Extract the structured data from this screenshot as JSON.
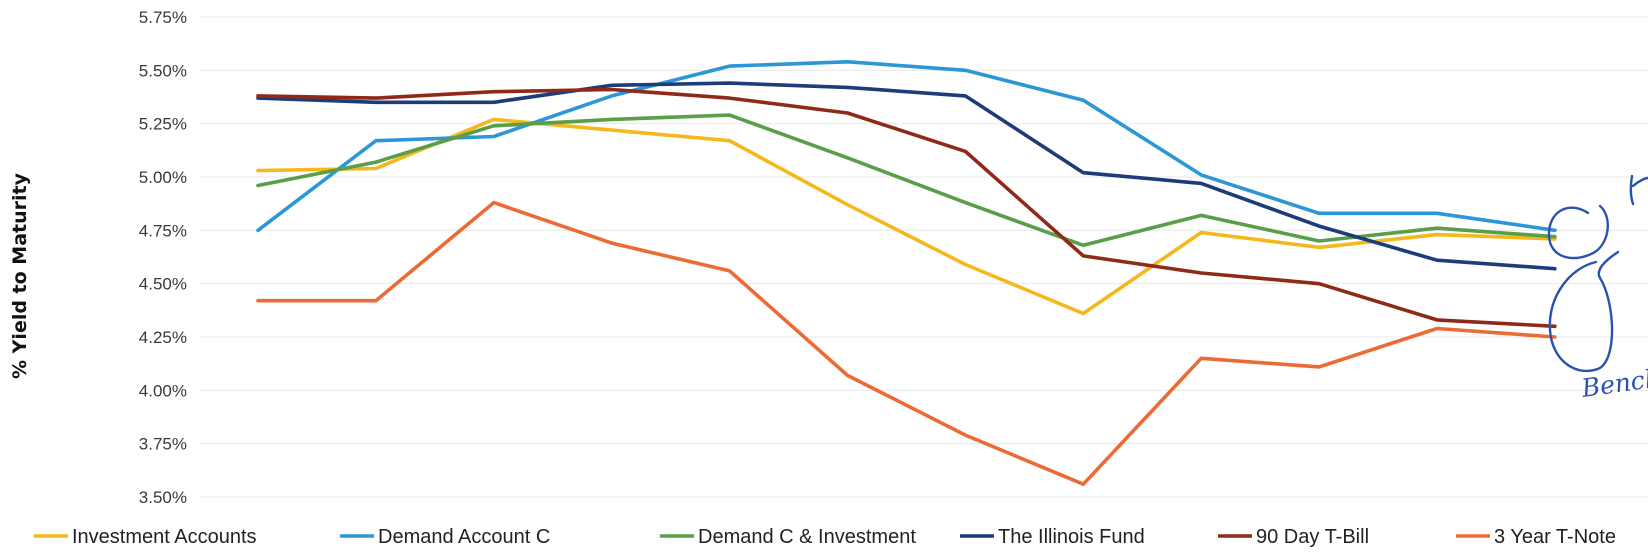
{
  "chart_data": {
    "type": "line",
    "title": "",
    "ylabel": "% Yield to Maturity",
    "xlabel": "",
    "ylim": [
      3.5,
      5.75
    ],
    "y_ticks": [
      "5.75%",
      "5.50%",
      "5.25%",
      "5.00%",
      "4.75%",
      "4.50%",
      "4.25%",
      "4.00%",
      "3.75%",
      "3.50%"
    ],
    "grid": true,
    "legend_position": "bottom",
    "series": [
      {
        "name": "Investment Accounts",
        "color": "#f5b81c",
        "values": [
          5.03,
          5.04,
          5.27,
          5.22,
          5.17,
          4.87,
          4.59,
          4.36,
          4.74,
          4.67,
          4.73,
          4.71
        ]
      },
      {
        "name": "Demand Account C",
        "color": "#2b97d6",
        "values": [
          4.75,
          5.17,
          5.19,
          5.38,
          5.52,
          5.54,
          5.5,
          5.36,
          5.01,
          4.83,
          4.83,
          4.75
        ]
      },
      {
        "name": "Demand C & Investment",
        "color": "#5a9e48",
        "values": [
          4.96,
          5.07,
          5.24,
          5.27,
          5.29,
          5.09,
          4.88,
          4.68,
          4.82,
          4.7,
          4.76,
          4.72
        ]
      },
      {
        "name": "The Illinois Fund",
        "color": "#1c3c7a",
        "values": [
          5.37,
          5.35,
          5.35,
          5.43,
          5.44,
          5.42,
          5.38,
          5.02,
          4.97,
          4.77,
          4.61,
          4.57
        ]
      },
      {
        "name": "90 Day T-Bill",
        "color": "#8f2a18",
        "values": [
          5.38,
          5.37,
          5.4,
          5.41,
          5.37,
          5.3,
          5.12,
          4.63,
          4.55,
          4.5,
          4.33,
          4.3
        ]
      },
      {
        "name": "3 Year T-Note",
        "color": "#ec6b35",
        "values": [
          4.42,
          4.42,
          4.88,
          4.69,
          4.56,
          4.07,
          3.79,
          3.56,
          4.15,
          4.11,
          4.29,
          4.25
        ]
      }
    ],
    "annotations": [
      {
        "text": "Bench"
      }
    ]
  }
}
